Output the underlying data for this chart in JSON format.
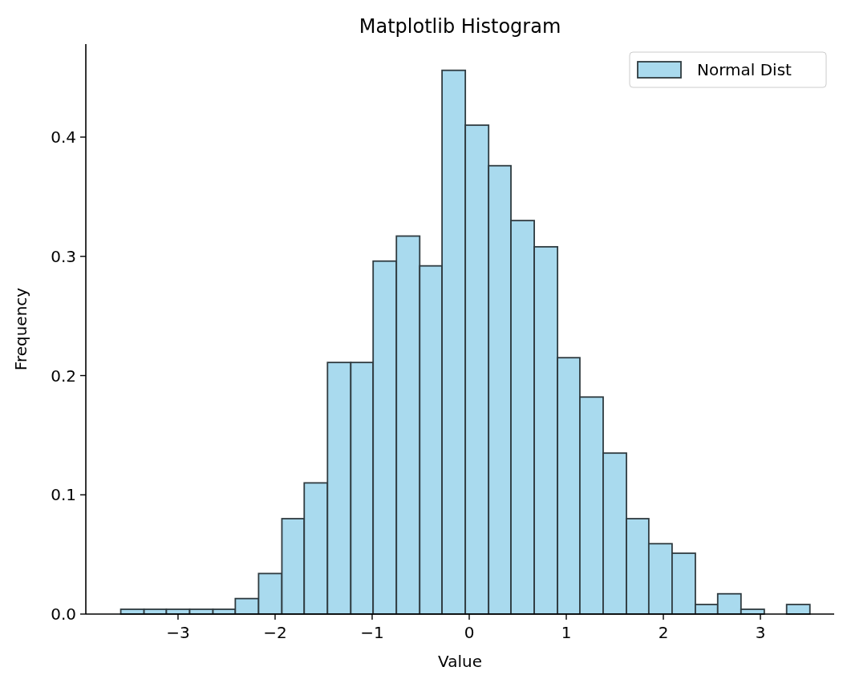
{
  "chart_data": {
    "type": "histogram",
    "title": "Matplotlib Histogram",
    "xlabel": "Value",
    "ylabel": "Frequency",
    "bins": [
      -3.59,
      -3.35,
      -3.12,
      -2.88,
      -2.64,
      -2.41,
      -2.17,
      -1.93,
      -1.7,
      -1.46,
      -1.22,
      -0.99,
      -0.75,
      -0.51,
      -0.28,
      -0.04,
      0.2,
      0.43,
      0.67,
      0.91,
      1.14,
      1.38,
      1.62,
      1.85,
      2.09,
      2.33,
      2.56,
      2.8,
      3.04,
      3.27,
      3.51
    ],
    "series": [
      {
        "name": "Normal Dist",
        "color": "#a9daee",
        "values": [
          0.004,
          0.004,
          0.004,
          0.004,
          0.004,
          0.013,
          0.034,
          0.08,
          0.11,
          0.211,
          0.211,
          0.296,
          0.317,
          0.292,
          0.456,
          0.41,
          0.376,
          0.33,
          0.308,
          0.215,
          0.182,
          0.135,
          0.08,
          0.059,
          0.051,
          0.008,
          0.017,
          0.004,
          0,
          0.008
        ]
      }
    ],
    "xlim": [
      -3.95,
      3.76
    ],
    "xticks": [
      {
        "value": -3,
        "label": "−3"
      },
      {
        "value": -2,
        "label": "−2"
      },
      {
        "value": -1,
        "label": "−1"
      },
      0,
      1,
      2,
      3
    ],
    "ylim": [
      0,
      0.478
    ],
    "yticks": [
      {
        "value": 0,
        "label": "0.0"
      },
      0.1,
      0.2,
      0.3,
      0.4
    ],
    "legend": "top right"
  }
}
